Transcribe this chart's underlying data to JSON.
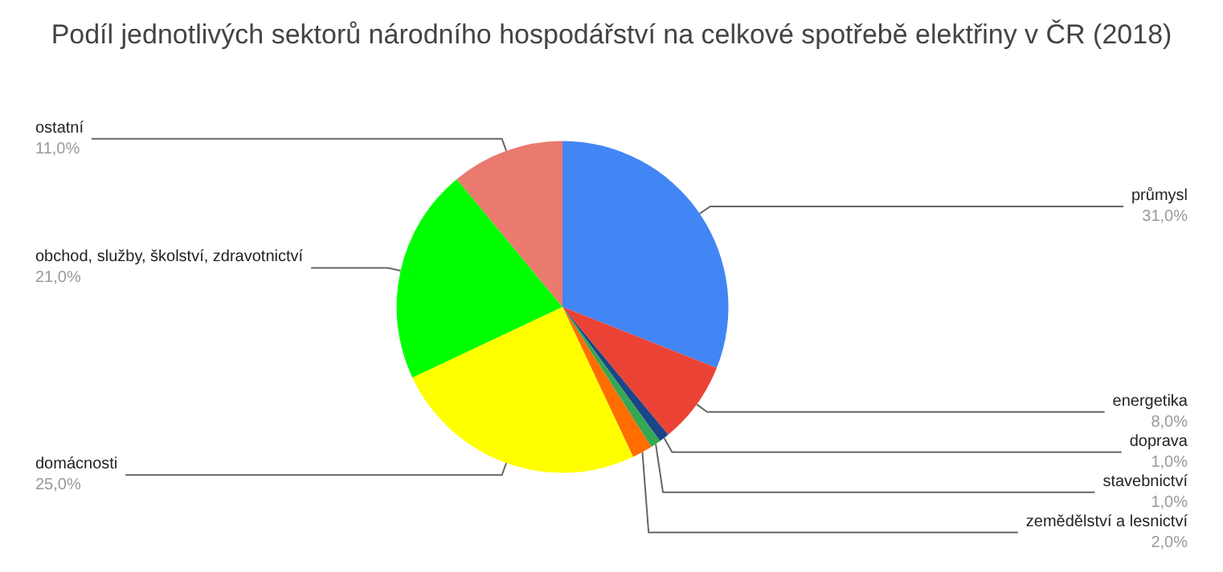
{
  "chart_data": {
    "type": "pie",
    "title": "Podíl jednotlivých sektorů národního hospodářství na celkové spotřebě elektřiny v ČR (2018)",
    "categories": [
      "průmysl",
      "energetika",
      "doprava",
      "stavebnictví",
      "zemědělství a lesnictví",
      "domácnosti",
      "obchod, služby, školství, zdravotnictví",
      "ostatní"
    ],
    "values": [
      31.0,
      8.0,
      1.0,
      1.0,
      2.0,
      25.0,
      21.0,
      11.0
    ],
    "colors": [
      "#4285f4",
      "#ea4335",
      "#1c4587",
      "#34a853",
      "#ff6d01",
      "#ffff00",
      "#00ff00",
      "#ea7a6e"
    ],
    "value_labels": [
      "31,0%",
      "8,0%",
      "1,0%",
      "1,0%",
      "2,0%",
      "25,0%",
      "21,0%",
      "11,0%"
    ]
  }
}
